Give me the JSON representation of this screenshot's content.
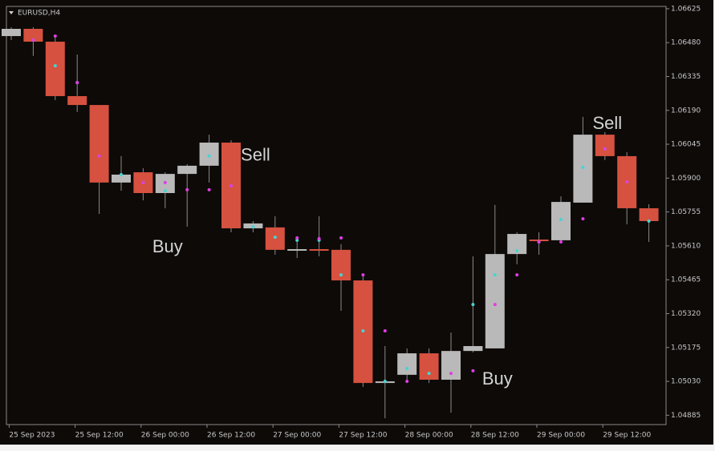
{
  "chart_data": {
    "type": "candlestick",
    "title": "EURUSD,H4",
    "categories": [
      null,
      "25 Sep 2023",
      null,
      null,
      "25 Sep 12:00",
      null,
      null,
      "26 Sep 00:00",
      null,
      null,
      "26 Sep 12:00",
      null,
      null,
      "27 Sep 00:00",
      null,
      null,
      "27 Sep 12:00",
      null,
      null,
      "28 Sep 00:00",
      null,
      null,
      "28 Sep 12:00",
      null,
      null,
      "29 Sep 00:00",
      null,
      null,
      "29 Sep 12:00",
      null
    ],
    "open": [
      1.06508,
      1.06539,
      1.06484,
      1.06251,
      1.06213,
      1.05881,
      1.05925,
      1.05836,
      1.05918,
      1.05953,
      1.06052,
      1.05685,
      1.05689,
      1.05593,
      1.05596,
      1.05593,
      1.05462,
      1.05023,
      1.05058,
      1.0515,
      1.05037,
      1.0516,
      1.05171,
      1.05575,
      1.05637,
      1.05634,
      1.05795,
      1.06086,
      1.05994,
      1.05771
    ],
    "high": [
      1.06546,
      1.06546,
      1.06508,
      1.06429,
      1.06213,
      1.05994,
      1.05942,
      1.05925,
      1.0596,
      1.06086,
      1.06062,
      1.05716,
      1.05737,
      1.05651,
      1.05737,
      1.05617,
      1.05479,
      1.05181,
      1.05171,
      1.05171,
      1.05239,
      1.05565,
      1.05785,
      1.05668,
      1.05668,
      1.05822,
      1.06162,
      1.06097,
      1.06011,
      1.05788
    ],
    "low": [
      1.06491,
      1.06423,
      1.06234,
      1.06183,
      1.05747,
      1.05846,
      1.05805,
      1.05771,
      1.05692,
      1.05881,
      1.05668,
      1.05668,
      1.05572,
      1.05558,
      1.05565,
      1.05332,
      1.05006,
      1.04872,
      1.05023,
      1.05023,
      1.04896,
      1.05154,
      1.05171,
      1.05531,
      1.05572,
      1.05627,
      1.05795,
      1.05977,
      1.05702,
      1.05627
    ],
    "close": [
      1.06539,
      1.06484,
      1.06251,
      1.06213,
      1.05881,
      1.05915,
      1.05836,
      1.05918,
      1.05953,
      1.06052,
      1.05685,
      1.05706,
      1.05593,
      1.05596,
      1.05589,
      1.05462,
      1.05023,
      1.0503,
      1.0515,
      1.05037,
      1.0516,
      1.05181,
      1.05575,
      1.05661,
      1.05634,
      1.05798,
      1.06086,
      1.05994,
      1.05771,
      1.05716
    ],
    "up_color": "#b9b9b9",
    "down_color": "#d6513f",
    "series": [
      {
        "color": "#47d4d0",
        "values": [
          null,
          1.06491,
          1.06381,
          1.06309,
          1.05994,
          1.05915,
          1.05881,
          1.05846,
          null,
          1.05994,
          1.05867,
          1.05692,
          1.05647,
          1.05634,
          1.05634,
          1.05486,
          1.05246,
          1.0503,
          1.05085,
          1.05064,
          null,
          1.05359,
          1.05486,
          1.05589,
          1.05627,
          1.05723,
          1.05946,
          1.06025,
          1.05884,
          1.05716
        ]
      },
      {
        "color": "#e03ce0",
        "values": [
          null,
          1.06491,
          1.06508,
          1.06309,
          1.05994,
          null,
          1.05881,
          1.05881,
          1.0585,
          1.0585,
          1.05867,
          null,
          null,
          1.05644,
          1.05641,
          1.05644,
          1.05486,
          1.05246,
          1.0503,
          null,
          1.05064,
          1.05075,
          1.05359,
          1.05486,
          1.05627,
          1.05627,
          1.05726,
          1.06025,
          1.05884,
          null
        ]
      }
    ],
    "annotations": [
      {
        "text": "Sell",
        "index": 11,
        "value": 1.05994
      },
      {
        "text": "Buy",
        "index": 7,
        "value": 1.05603
      },
      {
        "text": "Buy",
        "index": 22,
        "value": 1.05037
      },
      {
        "text": "Sell",
        "index": 27,
        "value": 1.06131
      }
    ],
    "ylim": [
      1.04845,
      1.06635
    ],
    "yticks": [
      1.06625,
      {
        "value": 1.0648,
        "label": "1.06480"
      },
      1.06335,
      {
        "value": 1.0619,
        "label": "1.06190"
      },
      1.06045,
      {
        "value": 1.059,
        "label": "1.05900"
      },
      1.05755,
      {
        "value": 1.0561,
        "label": "1.05610"
      },
      1.05465,
      {
        "value": 1.0532,
        "label": "1.05320"
      },
      1.05175,
      {
        "value": 1.0503,
        "label": "1.05030"
      },
      1.04885
    ]
  }
}
